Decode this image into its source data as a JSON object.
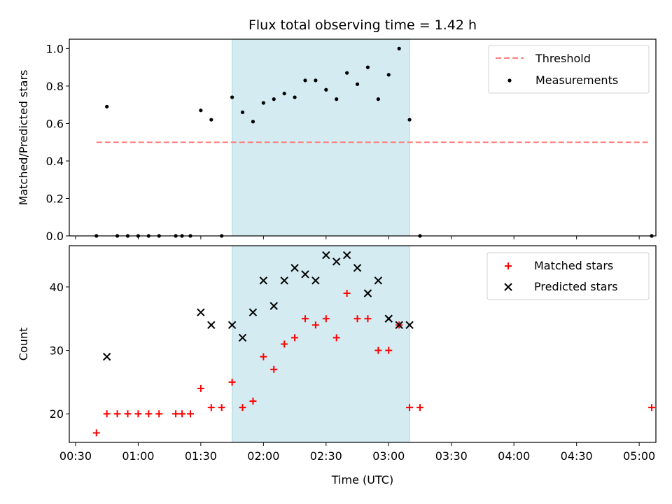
{
  "chart_data": [
    {
      "type": "scatter",
      "title": "Flux total observing time = 1.42 h",
      "xlabel": "",
      "ylabel": "Matched/Predicted stars",
      "x_axis": "time_utc",
      "xlim": [
        "00:27",
        "05:08"
      ],
      "ylim": [
        0,
        1.05
      ],
      "yticks": [
        "0.0",
        "0.2",
        "0.4",
        "0.6",
        "0.8",
        "1.0"
      ],
      "shaded_span": [
        "01:45",
        "03:10"
      ],
      "shade_color": "#d3ebf1",
      "grid": false,
      "legend": "top-right",
      "series": [
        {
          "name": "Threshold",
          "kind": "dashed-line",
          "color": "#ff7f7f",
          "x": [
            "00:40",
            "05:05"
          ],
          "y": [
            0.5,
            0.5
          ]
        },
        {
          "name": "Measurements",
          "kind": "dot",
          "color": "#000000",
          "x": [
            "00:40",
            "00:45",
            "00:50",
            "00:55",
            "01:00",
            "01:05",
            "01:10",
            "01:18",
            "01:21",
            "01:25",
            "01:30",
            "01:35",
            "01:40",
            "01:45",
            "01:50",
            "01:55",
            "02:00",
            "02:05",
            "02:10",
            "02:15",
            "02:20",
            "02:25",
            "02:30",
            "02:35",
            "02:40",
            "02:45",
            "02:50",
            "02:55",
            "03:00",
            "03:05",
            "03:10",
            "03:15",
            "05:06"
          ],
          "y": [
            0,
            0.69,
            0,
            0,
            0,
            0,
            0,
            0,
            0,
            0,
            0.67,
            0.62,
            0,
            0.74,
            0.66,
            0.61,
            0.71,
            0.73,
            0.76,
            0.74,
            0.83,
            0.83,
            0.78,
            0.73,
            0.87,
            0.81,
            0.9,
            0.73,
            0.86,
            1.0,
            0.62,
            0,
            0
          ]
        }
      ]
    },
    {
      "type": "scatter",
      "title": "",
      "xlabel": "Time (UTC)",
      "ylabel": "Count",
      "x_axis": "time_utc",
      "xlim": [
        "00:27",
        "05:08"
      ],
      "ylim": [
        15.5,
        46.5
      ],
      "xticks": [
        "00:30",
        "01:00",
        "01:30",
        "02:00",
        "02:30",
        "03:00",
        "03:30",
        "04:00",
        "04:30",
        "05:00"
      ],
      "yticks": [
        "20",
        "30",
        "40"
      ],
      "shaded_span": [
        "01:45",
        "03:10"
      ],
      "shade_color": "#d3ebf1",
      "grid": false,
      "legend": "top-right",
      "series": [
        {
          "name": "Matched stars",
          "kind": "plus",
          "color": "#ff0000",
          "x": [
            "00:40",
            "00:45",
            "00:50",
            "00:55",
            "01:00",
            "01:05",
            "01:10",
            "01:18",
            "01:21",
            "01:25",
            "01:30",
            "01:35",
            "01:40",
            "01:45",
            "01:50",
            "01:55",
            "02:00",
            "02:05",
            "02:10",
            "02:15",
            "02:20",
            "02:25",
            "02:30",
            "02:35",
            "02:40",
            "02:45",
            "02:50",
            "02:55",
            "03:00",
            "03:05",
            "03:10",
            "03:15",
            "05:06"
          ],
          "y": [
            17,
            20,
            20,
            20,
            20,
            20,
            20,
            20,
            20,
            20,
            24,
            21,
            21,
            25,
            21,
            22,
            29,
            27,
            31,
            32,
            35,
            34,
            35,
            32,
            39,
            35,
            35,
            30,
            30,
            34,
            21,
            21,
            21
          ]
        },
        {
          "name": "Predicted stars",
          "kind": "x",
          "color": "#000000",
          "x": [
            "00:45",
            "01:30",
            "01:35",
            "01:45",
            "01:50",
            "01:55",
            "02:00",
            "02:05",
            "02:10",
            "02:15",
            "02:20",
            "02:25",
            "02:30",
            "02:35",
            "02:40",
            "02:45",
            "02:50",
            "02:55",
            "03:00",
            "03:05",
            "03:10"
          ],
          "y": [
            29,
            36,
            34,
            34,
            32,
            36,
            41,
            37,
            41,
            43,
            42,
            41,
            45,
            44,
            45,
            43,
            39,
            41,
            35,
            34,
            34
          ]
        }
      ]
    }
  ]
}
